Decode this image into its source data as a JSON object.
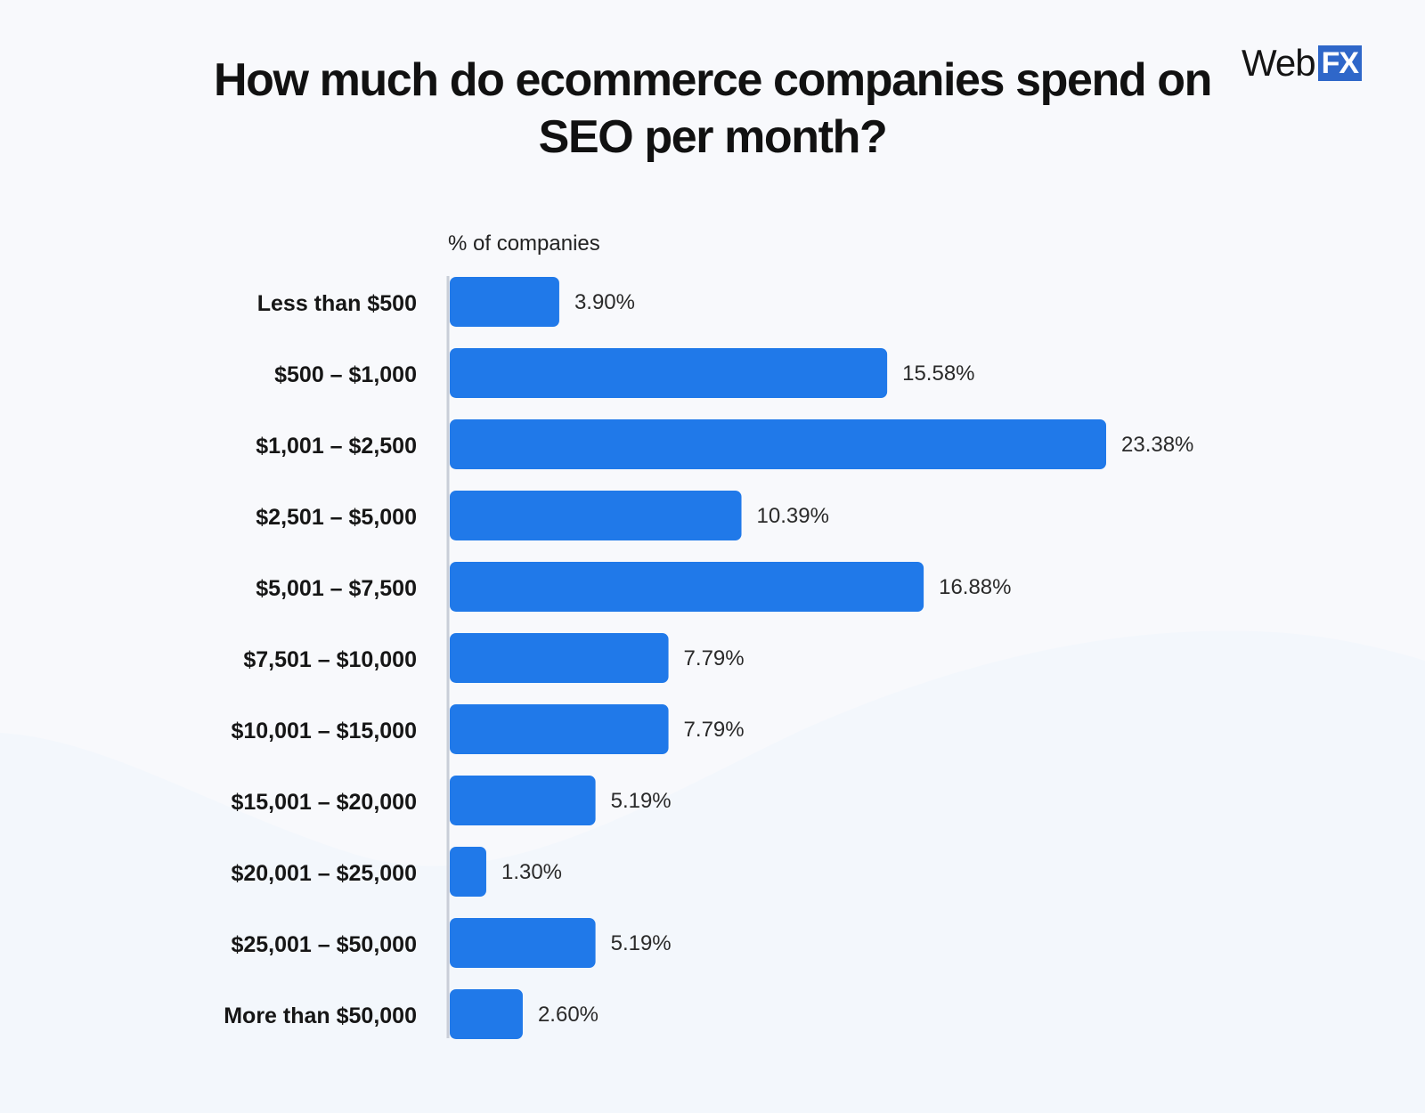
{
  "header": {
    "title": "How much do ecommerce companies spend on SEO per month?"
  },
  "logo": {
    "web": "Web",
    "fx": "FX"
  },
  "chart_data": {
    "type": "bar",
    "orientation": "horizontal",
    "title": "How much do ecommerce companies spend on SEO per month?",
    "axis_title": "% of companies",
    "xlim": [
      0,
      23.38
    ],
    "grid": false,
    "categories": [
      "Less than $500",
      "$500 – $1,000",
      "$1,001 – $2,500",
      "$2,501 – $5,000",
      "$5,001 – $7,500",
      "$7,501 – $10,000",
      "$10,001 – $15,000",
      "$15,001 – $20,000",
      "$20,001 – $25,000",
      "$25,001 – $50,000",
      "More than $50,000"
    ],
    "values": [
      3.9,
      15.58,
      23.38,
      10.39,
      16.88,
      7.79,
      7.79,
      5.19,
      1.3,
      5.19,
      2.6
    ],
    "value_labels": [
      "3.90%",
      "15.58%",
      "23.38%",
      "10.39%",
      "16.88%",
      "7.79%",
      "7.79%",
      "5.19%",
      "1.30%",
      "5.19%",
      "2.60%"
    ],
    "bar_color": "#2079e9",
    "axis_color": "#c9ced8"
  }
}
